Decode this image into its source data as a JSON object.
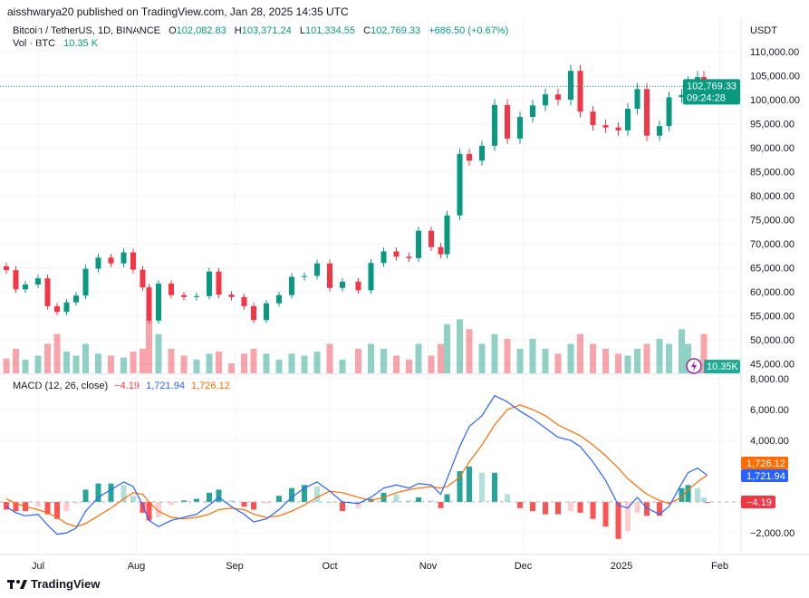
{
  "header": {
    "published": "aisshwarya20 published on TradingView.com, Jan 28, 2025 14:35 UTC",
    "symbol": "Bitcoin / TetherUS, 1D, BINANCE",
    "open_label": "O",
    "open": "102,082.83",
    "high_label": "H",
    "high": "103,371.24",
    "low_label": "L",
    "low": "101,334.55",
    "close_label": "C",
    "close": "102,769.33",
    "change": "+686.50 (+0.67%)",
    "vol_label": "Vol · BTC",
    "vol": "10.35 K"
  },
  "macd_legend": {
    "label": "MACD (12, 26, close)",
    "hist": "−4.19",
    "macd": "1,721.94",
    "signal": "1,726.12"
  },
  "footer": {
    "brand": "TradingView",
    "logo_icon": "tradingview-logo-icon"
  },
  "colors": {
    "up": "#089981",
    "down": "#f23645",
    "macd": "#2962ff",
    "signal": "#ff6d00",
    "alert": "#9c27b0"
  },
  "chart_data": [
    {
      "type": "candlestick",
      "currency": "USDT",
      "ylim": [
        45000,
        110000
      ],
      "y_ticks": [
        "110,000.00",
        "105,000.00",
        "100,000.00",
        "95,000.00",
        "90,000.00",
        "85,000.00",
        "80,000.00",
        "75,000.00",
        "70,000.00",
        "65,000.00",
        "60,000.00",
        "55,000.00",
        "50,000.00",
        "45,000.00"
      ],
      "x_ticks": [
        {
          "date": "2024-07-01",
          "label": "Jul"
        },
        {
          "date": "2024-08-01",
          "label": "Aug"
        },
        {
          "date": "2024-09-01",
          "label": "Sep"
        },
        {
          "date": "2024-10-01",
          "label": "Oct"
        },
        {
          "date": "2024-11-01",
          "label": "Nov"
        },
        {
          "date": "2024-12-01",
          "label": "Dec"
        },
        {
          "date": "2025-01-01",
          "label": "2025"
        },
        {
          "date": "2025-02-01",
          "label": "Feb"
        }
      ],
      "last_price": 102769.33,
      "last_price_label": "102,769.33",
      "countdown": "09:24:28",
      "volume_label": "10.35K",
      "dates": [
        "2024-06-21",
        "2024-06-24",
        "2024-06-27",
        "2024-07-01",
        "2024-07-04",
        "2024-07-07",
        "2024-07-10",
        "2024-07-13",
        "2024-07-16",
        "2024-07-20",
        "2024-07-24",
        "2024-07-28",
        "2024-07-31",
        "2024-08-03",
        "2024-08-05",
        "2024-08-08",
        "2024-08-12",
        "2024-08-16",
        "2024-08-20",
        "2024-08-24",
        "2024-08-27",
        "2024-08-31",
        "2024-09-04",
        "2024-09-07",
        "2024-09-11",
        "2024-09-15",
        "2024-09-19",
        "2024-09-23",
        "2024-09-27",
        "2024-10-01",
        "2024-10-05",
        "2024-10-10",
        "2024-10-14",
        "2024-10-18",
        "2024-10-22",
        "2024-10-26",
        "2024-10-29",
        "2024-11-02",
        "2024-11-05",
        "2024-11-07",
        "2024-11-11",
        "2024-11-14",
        "2024-11-18",
        "2024-11-22",
        "2024-11-26",
        "2024-11-30",
        "2024-12-04",
        "2024-12-08",
        "2024-12-12",
        "2024-12-16",
        "2024-12-19",
        "2024-12-23",
        "2024-12-27",
        "2024-12-31",
        "2025-01-03",
        "2025-01-06",
        "2025-01-09",
        "2025-01-13",
        "2025-01-16",
        "2025-01-20",
        "2025-01-22",
        "2025-01-25",
        "2025-01-27",
        "2025-01-28"
      ],
      "close": [
        64500,
        60500,
        61500,
        62800,
        57000,
        55800,
        57800,
        59200,
        64800,
        67100,
        65900,
        68200,
        64600,
        60900,
        54000,
        61700,
        59300,
        58900,
        59100,
        64200,
        59400,
        58900,
        57000,
        54100,
        57600,
        59300,
        63100,
        63300,
        65900,
        60800,
        62100,
        60300,
        66000,
        68400,
        67300,
        67000,
        72700,
        69300,
        67800,
        75900,
        88700,
        87300,
        90400,
        98900,
        91900,
        96400,
        98800,
        101100,
        100000,
        106000,
        97500,
        94700,
        94200,
        93600,
        98100,
        102200,
        92500,
        94500,
        100500,
        101000,
        103600,
        104700,
        102000,
        102769.33
      ],
      "volume_k": [
        15,
        25,
        14,
        18,
        30,
        40,
        22,
        18,
        30,
        20,
        18,
        16,
        22,
        25,
        55,
        40,
        25,
        18,
        14,
        20,
        22,
        10,
        20,
        25,
        20,
        14,
        20,
        18,
        22,
        30,
        14,
        25,
        30,
        25,
        18,
        14,
        30,
        18,
        30,
        50,
        55,
        45,
        30,
        40,
        35,
        25,
        35,
        25,
        20,
        30,
        40,
        30,
        25,
        20,
        18,
        25,
        30,
        35,
        30,
        45,
        30,
        14,
        40,
        10.35
      ]
    },
    {
      "type": "line",
      "name": "MACD (12, 26, close)",
      "ylim": [
        -2500,
        8500
      ],
      "y_ticks": [
        {
          "v": 8000,
          "label": "8,000.00"
        },
        {
          "v": 6000,
          "label": "6,000.00"
        },
        {
          "v": 4000,
          "label": "4,000.00"
        },
        {
          "v": -2000,
          "label": "−2,000.00"
        }
      ],
      "macd": [
        -300,
        -700,
        -900,
        -800,
        -1500,
        -2100,
        -2000,
        -1700,
        -600,
        300,
        800,
        1300,
        1000,
        -200,
        -1200,
        -1600,
        -1200,
        -1000,
        -800,
        -200,
        300,
        -300,
        -800,
        -1300,
        -1100,
        -500,
        300,
        900,
        1300,
        700,
        0,
        -100,
        300,
        900,
        1100,
        900,
        1200,
        1100,
        500,
        1500,
        3600,
        4900,
        5600,
        6900,
        6500,
        5900,
        5400,
        4800,
        4200,
        4000,
        3600,
        2600,
        1400,
        -200,
        -400,
        300,
        -400,
        -800,
        -300,
        1200,
        1900,
        2200,
        1900,
        1721.94
      ],
      "signal": [
        200,
        -100,
        -300,
        -500,
        -700,
        -1000,
        -1400,
        -1600,
        -1400,
        -900,
        -400,
        200,
        600,
        500,
        0,
        -600,
        -1000,
        -1100,
        -1000,
        -800,
        -500,
        -400,
        -500,
        -800,
        -1000,
        -900,
        -600,
        -200,
        300,
        700,
        600,
        300,
        100,
        300,
        600,
        800,
        900,
        1000,
        900,
        1000,
        1600,
        2600,
        3700,
        5000,
        6000,
        6300,
        6000,
        5600,
        5000,
        4600,
        4300,
        3700,
        3000,
        2200,
        1500,
        1000,
        500,
        100,
        -100,
        300,
        800,
        1300,
        1600,
        1726.12
      ]
    }
  ]
}
